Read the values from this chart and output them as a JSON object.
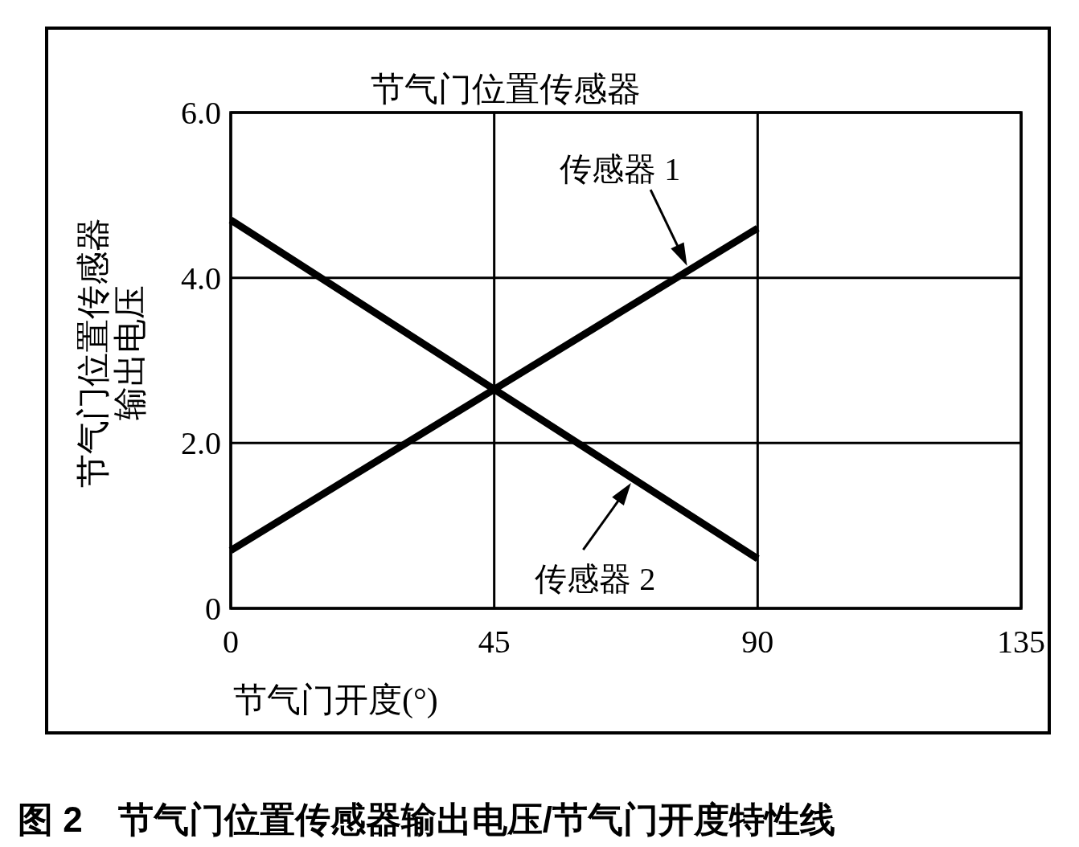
{
  "chart_data": {
    "type": "line",
    "title": "节气门位置传感器",
    "xlabel": "节气门开度(°)",
    "ylabel": "节气门位置传感器输出电压",
    "x": [
      0,
      45,
      90
    ],
    "series": [
      {
        "name": "传感器 1",
        "color": "#000000",
        "values": [
          0.7,
          2.65,
          4.6
        ]
      },
      {
        "name": "传感器 2",
        "color": "#000000",
        "values": [
          4.7,
          2.65,
          0.6
        ]
      }
    ],
    "xlim": [
      0,
      135
    ],
    "xticks": [
      0,
      45,
      90,
      135
    ],
    "ylim": [
      0,
      6
    ],
    "yticks": [
      {
        "value": 0,
        "label": "0"
      },
      {
        "value": 2,
        "label": "2.0"
      },
      {
        "value": 4,
        "label": "4.0"
      },
      {
        "value": 6,
        "label": "6.0"
      }
    ],
    "grid": true,
    "marker": "none",
    "line_style": "solid",
    "annotations": [
      "图 2　节气门位置传感器输出电压/节气门开度特性线"
    ]
  }
}
